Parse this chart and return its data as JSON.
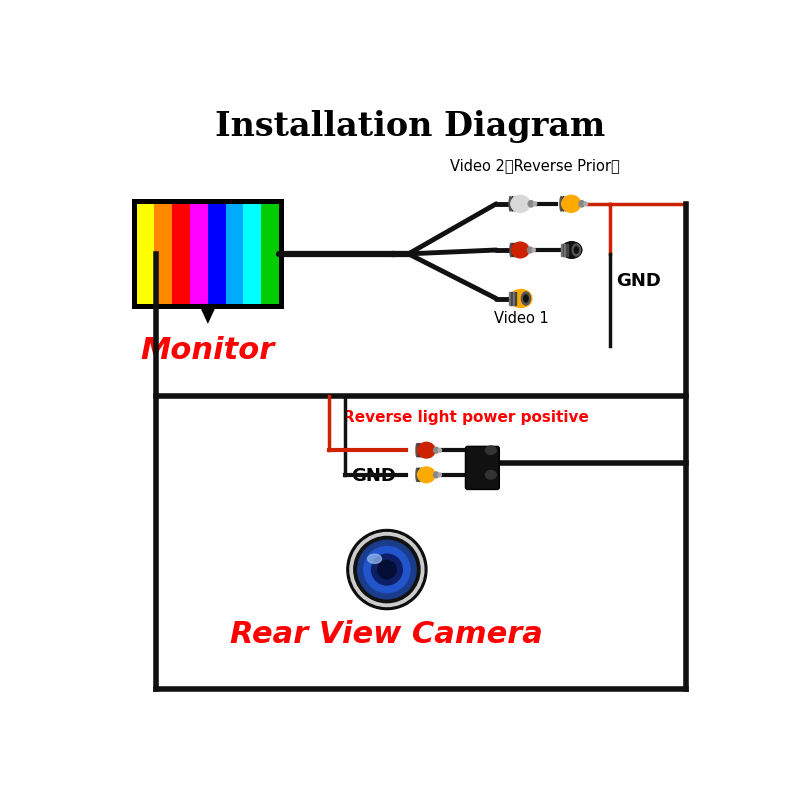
{
  "title": "Installation Diagram",
  "title_fontsize": 24,
  "title_fontweight": "bold",
  "bg_color": "#ffffff",
  "monitor_label": "Monitor",
  "monitor_label_color": "#ff0000",
  "monitor_label_fontsize": 22,
  "camera_label": "Rear View Camera",
  "camera_label_color": "#ff0000",
  "camera_label_fontsize": 22,
  "video2_label": "Video 2（Reverse Prior）",
  "video1_label": "Video 1",
  "gnd_label_top": "GND",
  "gnd_label_bottom": "GND",
  "reverse_label": "Reverse light power positive",
  "bar_colors": [
    "#ffff00",
    "#ff8800",
    "#ff0000",
    "#ff00ff",
    "#0000ff",
    "#00aaff",
    "#00ffff",
    "#00cc00"
  ],
  "connector_white": "#d8d8d8",
  "connector_yellow": "#ffaa00",
  "connector_red": "#cc2200",
  "connector_black": "#111111",
  "wire_black": "#111111",
  "wire_red": "#cc2200",
  "lw_main": 3.5,
  "lw_thin": 2.5
}
